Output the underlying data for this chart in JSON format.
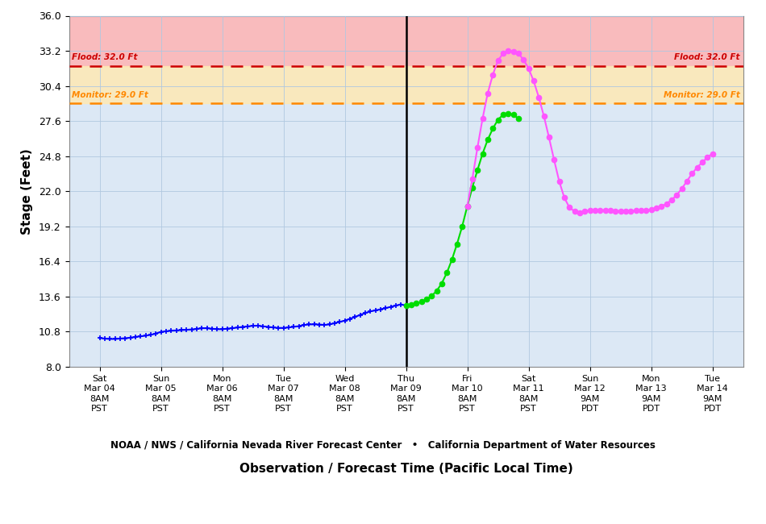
{
  "title": "",
  "xlabel": "Observation / Forecast Time (Pacific Local Time)",
  "ylabel": "Stage (Feet)",
  "ylim": [
    8.0,
    36.0
  ],
  "yticks": [
    8.0,
    10.8,
    13.6,
    16.4,
    19.2,
    22.0,
    24.8,
    27.6,
    30.4,
    33.2,
    36.0
  ],
  "flood_stage": 32.0,
  "monitor_stage": 29.0,
  "flood_color": "#ffb3b3",
  "monitor_color": "#ffe8b3",
  "flood_line_color": "#cc0000",
  "monitor_line_color": "#ff8800",
  "observed_color": "#0000ff",
  "forecast_color": "#00dd00",
  "guidance_color": "#ff55ff",
  "tick_labels": [
    "Sat\nMar 04\n8AM\nPST",
    "Sun\nMar 05\n8AM\nPST",
    "Mon\nMar 06\n8AM\nPST",
    "Tue\nMar 07\n8AM\nPST",
    "Wed\nMar 08\n8AM\nPST",
    "Thu\nMar 09\n8AM\nPST",
    "Fri\nMar 10\n8AM\nPST",
    "Sat\nMar 11\n8AM\nPST",
    "Sun\nMar 12\n9AM\nPDT",
    "Mon\nMar 13\n9AM\nPDT",
    "Tue\nMar 14\n9AM\nPDT"
  ],
  "tick_positions": [
    0,
    1,
    2,
    3,
    4,
    5,
    6,
    7,
    8,
    9,
    10
  ],
  "vline_pos": 5,
  "footer_text": "NOAA / NWS / California Nevada River Forecast Center   •   California Department of Water Resources",
  "observed_x": [
    0,
    0.083,
    0.167,
    0.25,
    0.333,
    0.417,
    0.5,
    0.583,
    0.667,
    0.75,
    0.833,
    0.917,
    1.0,
    1.083,
    1.167,
    1.25,
    1.333,
    1.417,
    1.5,
    1.583,
    1.667,
    1.75,
    1.833,
    1.917,
    2.0,
    2.083,
    2.167,
    2.25,
    2.333,
    2.417,
    2.5,
    2.583,
    2.667,
    2.75,
    2.833,
    2.917,
    3.0,
    3.083,
    3.167,
    3.25,
    3.333,
    3.417,
    3.5,
    3.583,
    3.667,
    3.75,
    3.833,
    3.917,
    4.0,
    4.083,
    4.167,
    4.25,
    4.333,
    4.417,
    4.5,
    4.583,
    4.667,
    4.75,
    4.833,
    4.917,
    5.0
  ],
  "observed_y": [
    10.3,
    10.25,
    10.22,
    10.22,
    10.25,
    10.28,
    10.32,
    10.38,
    10.43,
    10.48,
    10.55,
    10.65,
    10.78,
    10.83,
    10.88,
    10.9,
    10.93,
    10.95,
    10.98,
    11.02,
    11.08,
    11.08,
    11.04,
    11.0,
    11.0,
    11.04,
    11.08,
    11.13,
    11.18,
    11.22,
    11.27,
    11.28,
    11.23,
    11.18,
    11.14,
    11.1,
    11.1,
    11.14,
    11.19,
    11.24,
    11.33,
    11.38,
    11.39,
    11.37,
    11.34,
    11.38,
    11.48,
    11.58,
    11.68,
    11.82,
    11.98,
    12.13,
    12.28,
    12.42,
    12.5,
    12.58,
    12.68,
    12.78,
    12.88,
    12.98,
    12.88
  ],
  "forecast_x": [
    5.0,
    5.083,
    5.167,
    5.25,
    5.333,
    5.417,
    5.5,
    5.583,
    5.667,
    5.75,
    5.833,
    5.917,
    6.0,
    6.083,
    6.167,
    6.25,
    6.333,
    6.417,
    6.5,
    6.583,
    6.667,
    6.75,
    6.833
  ],
  "forecast_y": [
    12.88,
    12.95,
    13.05,
    13.18,
    13.38,
    13.65,
    14.05,
    14.65,
    15.5,
    16.55,
    17.8,
    19.2,
    20.8,
    22.3,
    23.7,
    25.0,
    26.1,
    27.0,
    27.7,
    28.1,
    28.2,
    28.1,
    27.8
  ],
  "guidance_x": [
    6.0,
    6.083,
    6.167,
    6.25,
    6.333,
    6.417,
    6.5,
    6.583,
    6.667,
    6.75,
    6.833,
    6.917,
    7.0,
    7.083,
    7.167,
    7.25,
    7.333,
    7.417,
    7.5,
    7.583,
    7.667,
    7.75,
    7.833,
    7.917,
    8.0,
    8.083,
    8.167,
    8.25,
    8.333,
    8.417,
    8.5,
    8.583,
    8.667,
    8.75,
    8.833,
    8.917,
    9.0,
    9.083,
    9.167,
    9.25,
    9.333,
    9.417,
    9.5,
    9.583,
    9.667,
    9.75,
    9.833,
    9.917,
    10.0
  ],
  "guidance_y": [
    20.8,
    23.0,
    25.5,
    27.8,
    29.8,
    31.3,
    32.4,
    33.0,
    33.2,
    33.15,
    33.0,
    32.5,
    31.8,
    30.8,
    29.5,
    28.0,
    26.3,
    24.5,
    22.8,
    21.5,
    20.7,
    20.4,
    20.3,
    20.4,
    20.5,
    20.5,
    20.5,
    20.48,
    20.45,
    20.43,
    20.42,
    20.42,
    20.43,
    20.45,
    20.48,
    20.5,
    20.55,
    20.65,
    20.8,
    21.0,
    21.3,
    21.7,
    22.2,
    22.8,
    23.4,
    23.9,
    24.3,
    24.7,
    25.0
  ]
}
